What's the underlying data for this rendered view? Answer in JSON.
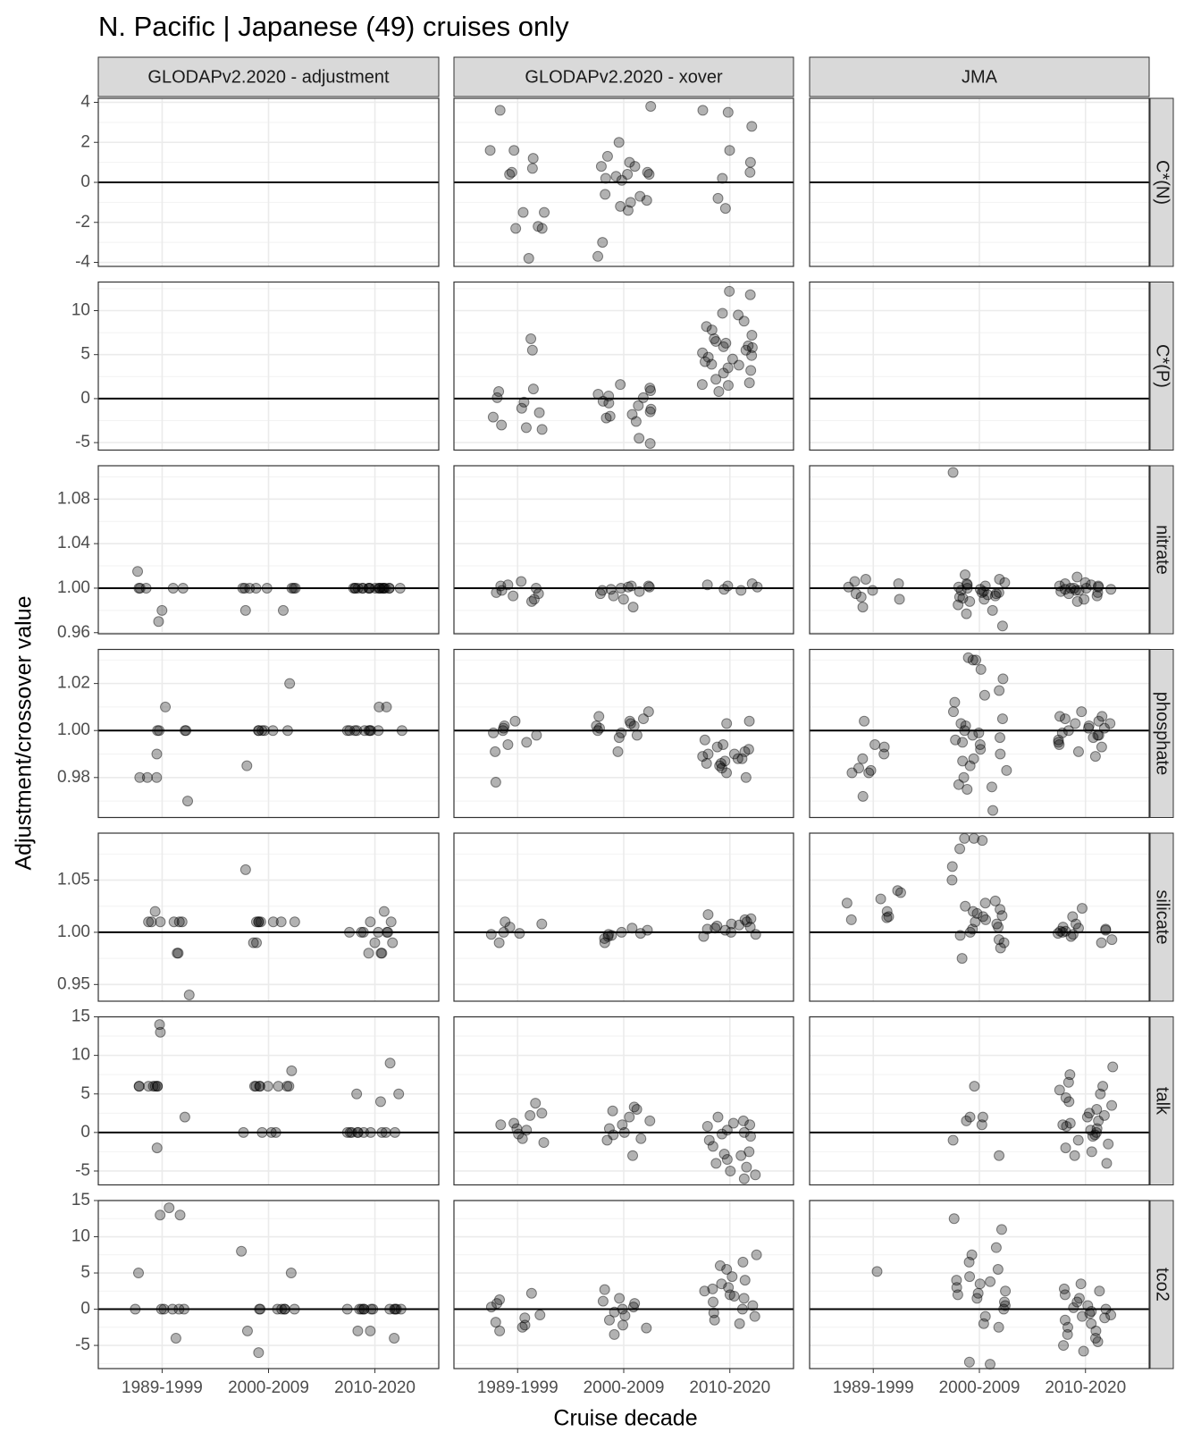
{
  "chart_data": {
    "type": "scatter",
    "title": "N. Pacific | Japanese (49) cruises only",
    "xlabel": "Cruise decade",
    "ylabel": "Adjustment/crossover value",
    "categories": [
      "1989-1999",
      "2000-2009",
      "2010-2020"
    ],
    "columns": [
      "GLODAPv2.2020 - adjustment",
      "GLODAPv2.2020 - xover",
      "JMA"
    ],
    "point_color": "#000000",
    "point_opacity": 0.3,
    "grid": true,
    "rows": [
      {
        "name": "C*(N)",
        "ylim": [
          -4.2,
          4.2
        ],
        "yticks": [
          -4,
          -2,
          0,
          2,
          4
        ],
        "hline": 0,
        "panels": [
          [
            [],
            [],
            []
          ],
          [
            [
              3.6,
              1.6,
              1.6,
              0.4,
              0.7,
              0.5,
              1.2,
              -1.5,
              -2.2,
              -2.3,
              -2.3,
              -1.5,
              -3.8
            ],
            [
              3.8,
              2.0,
              0.5,
              0.8,
              1.0,
              1.3,
              0.4,
              0.3,
              0.4,
              0.8,
              0.2,
              0.1,
              -0.6,
              -0.7,
              -0.9,
              -1.2,
              -1.4,
              -1.0,
              -3.0,
              -3.7
            ],
            [
              2.8,
              3.6,
              3.5,
              1.6,
              1.0,
              0.5,
              0.2,
              -0.8,
              -1.3
            ]
          ],
          [
            [],
            [],
            []
          ]
        ]
      },
      {
        "name": "C*(P)",
        "ylim": [
          -5.85,
          13.25
        ],
        "yticks": [
          -5,
          0,
          5,
          10
        ],
        "hline": 0,
        "panels": [
          [
            [],
            [],
            []
          ],
          [
            [
              6.8,
              5.5,
              1.1,
              0.8,
              0.1,
              -0.4,
              -1.1,
              -1.6,
              -2.1,
              -3.0,
              -3.3,
              -3.5
            ],
            [
              1.6,
              1.2,
              0.9,
              0.5,
              0.3,
              0.1,
              -0.3,
              -0.8,
              -1.2,
              -1.8,
              -2.0,
              -2.2,
              -2.6,
              -4.5,
              -5.1,
              -1.5,
              -0.5
            ],
            [
              12.2,
              11.8,
              9.7,
              9.5,
              8.8,
              8.2,
              7.8,
              7.2,
              6.8,
              6.3,
              6.0,
              5.8,
              5.5,
              5.2,
              4.9,
              4.5,
              4.2,
              3.8,
              3.5,
              3.2,
              2.9,
              2.2,
              1.8,
              1.6,
              1.5,
              0.8,
              6.5,
              5.9,
              4.7,
              3.9
            ]
          ],
          [
            [],
            [],
            []
          ]
        ]
      },
      {
        "name": "nitrate",
        "ylim": [
          0.959,
          1.11
        ],
        "yticks": [
          {
            "value": 0.96,
            "label": "0.96"
          },
          {
            "value": 1,
            "label": "1.00"
          },
          {
            "value": 1.04,
            "label": "1.04"
          },
          {
            "value": 1.08,
            "label": "1.08"
          }
        ],
        "hline": 1,
        "panels": [
          [
            [
              1.015,
              1,
              1,
              1,
              1,
              1,
              0.98,
              0.97
            ],
            [
              1,
              1,
              1,
              1,
              1,
              1,
              1,
              1,
              0.98,
              0.98
            ],
            [
              1,
              1,
              1,
              1,
              1,
              1,
              1,
              1,
              1,
              1,
              1,
              1,
              1,
              1,
              1,
              1,
              1,
              1,
              1,
              1
            ]
          ],
          [
            [
              1.006,
              1.003,
              1,
              0.998,
              0.996,
              0.995,
              0.993,
              0.99,
              0.988,
              1.002
            ],
            [
              1.002,
              1.001,
              1,
              0.999,
              0.998,
              0.997,
              0.995,
              0.993,
              0.99,
              0.983,
              1.002,
              1.001
            ],
            [
              1.004,
              1.003,
              1.001,
              0.999,
              0.998,
              1.002
            ]
          ],
          [
            [
              1.008,
              1.006,
              1.004,
              1.001,
              0.998,
              0.995,
              0.992,
              0.99,
              0.983
            ],
            [
              1.104,
              1.012,
              1.008,
              1.005,
              1.003,
              1,
              0.998,
              0.996,
              0.994,
              0.992,
              0.99,
              0.988,
              0.985,
              0.98,
              0.977,
              0.966,
              1.004,
              1.002,
              0.999,
              0.997,
              0.995,
              0.993,
              1.001,
              0.996,
              0.991
            ],
            [
              1.01,
              1.005,
              1.003,
              1.002,
              1.001,
              1,
              1,
              0.999,
              0.998,
              0.997,
              0.995,
              0.993,
              0.99,
              0.988,
              1.004,
              1.002,
              1,
              0.999,
              0.998,
              0.996
            ]
          ]
        ]
      },
      {
        "name": "phosphate",
        "ylim": [
          0.963,
          1.0345
        ],
        "yticks": [
          {
            "value": 0.98,
            "label": "0.98"
          },
          {
            "value": 1,
            "label": "1.00"
          },
          {
            "value": 1.02,
            "label": "1.02"
          }
        ],
        "hline": 1,
        "panels": [
          [
            [
              1.01,
              1,
              1,
              1,
              1,
              0.99,
              0.98,
              0.98,
              0.98,
              0.97
            ],
            [
              1.02,
              1,
              1,
              1,
              1,
              1,
              1,
              0.985
            ],
            [
              1.01,
              1.01,
              1,
              1,
              1,
              1,
              1,
              1,
              1,
              1,
              1,
              1
            ]
          ],
          [
            [
              1.004,
              1.002,
              1.001,
              1,
              0.999,
              0.998,
              0.995,
              0.994,
              0.991,
              0.978
            ],
            [
              1.008,
              1.006,
              1.005,
              1.004,
              1.003,
              1.002,
              1.001,
              1,
              0.999,
              0.998,
              0.997,
              0.991,
              1.002
            ],
            [
              1.004,
              1.003,
              0.996,
              0.994,
              0.992,
              0.991,
              0.99,
              0.989,
              0.988,
              0.987,
              0.986,
              0.985,
              0.984,
              0.982,
              0.98,
              0.993,
              0.99,
              0.988,
              0.986
            ]
          ],
          [
            [
              1.004,
              0.994,
              0.993,
              0.99,
              0.988,
              0.983,
              0.982,
              0.982,
              0.972,
              0.984
            ],
            [
              1.031,
              1.03,
              1.03,
              1.026,
              1.022,
              1.017,
              1.015,
              1.012,
              1.008,
              1.005,
              1.003,
              1,
              0.998,
              0.996,
              0.994,
              0.99,
              0.988,
              0.985,
              0.983,
              0.98,
              0.977,
              0.976,
              0.975,
              0.966,
              1.002,
              0.999,
              0.997,
              0.995,
              0.992,
              0.987
            ],
            [
              1.008,
              1.006,
              1.005,
              1.004,
              1.003,
              1.002,
              1.001,
              1,
              0.999,
              0.998,
              0.997,
              0.996,
              0.995,
              0.993,
              0.991,
              0.989,
              1.006,
              1.003,
              1.001,
              0.998,
              0.994
            ]
          ]
        ]
      },
      {
        "name": "silicate",
        "ylim": [
          0.934,
          1.095
        ],
        "yticks": [
          {
            "value": 0.95,
            "label": "0.95"
          },
          {
            "value": 1,
            "label": "1.00"
          },
          {
            "value": 1.05,
            "label": "1.05"
          }
        ],
        "hline": 1,
        "panels": [
          [
            [
              1.02,
              1.01,
              1.01,
              1.01,
              1.01,
              1.01,
              1.01,
              0.98,
              0.98,
              0.94
            ],
            [
              1.06,
              1.01,
              1.01,
              1.01,
              1.01,
              1.01,
              1.01,
              1.01,
              0.99,
              0.99
            ],
            [
              1.02,
              1.01,
              1.01,
              1,
              1,
              1,
              1,
              1,
              1,
              0.99,
              0.99,
              0.98,
              0.98,
              0.98
            ]
          ],
          [
            [
              1.01,
              1.008,
              1.005,
              1,
              0.999,
              0.998,
              0.99
            ],
            [
              1.004,
              1.002,
              1,
              0.999,
              0.998,
              0.997,
              0.996,
              0.994,
              0.99
            ],
            [
              1.017,
              1.013,
              1.01,
              1.008,
              1.006,
              1.005,
              1.004,
              1.003,
              1.002,
              1,
              0.998,
              0.996,
              1.012,
              1.007
            ]
          ],
          [
            [
              1.04,
              1.038,
              1.032,
              1.028,
              1.02,
              1.015,
              1.014,
              1.012
            ],
            [
              1.09,
              1.09,
              1.088,
              1.08,
              1.063,
              1.05,
              1.03,
              1.028,
              1.025,
              1.02,
              1.018,
              1.015,
              1.012,
              1.01,
              1.008,
              1.005,
              1,
              0.997,
              0.993,
              0.99,
              0.985,
              0.975,
              1.022,
              1.016,
              1.003
            ],
            [
              1.023,
              1.015,
              1.008,
              1.005,
              1.003,
              1.002,
              1.001,
              1,
              0.999,
              0.998,
              0.996,
              0.993,
              0.99,
              1.004,
              1.001
            ]
          ]
        ]
      },
      {
        "name": "talk",
        "ylim": [
          -6.8,
          15
        ],
        "yticks": [
          -5,
          0,
          5,
          10,
          15
        ],
        "hline": 0,
        "panels": [
          [
            [
              14,
              13,
              6,
              6,
              6,
              6,
              6,
              6,
              6,
              2,
              -2
            ],
            [
              8,
              6,
              6,
              6,
              6,
              6,
              6,
              6,
              6,
              0,
              0,
              0,
              0
            ],
            [
              9,
              5,
              5,
              4,
              0,
              0,
              0,
              0,
              0,
              0,
              0,
              0,
              0,
              0
            ]
          ],
          [
            [
              3.8,
              2.5,
              2.2,
              1.2,
              1.0,
              0.5,
              0.3,
              -0.2,
              -0.8,
              -1.3
            ],
            [
              3.3,
              3.0,
              2.8,
              2.0,
              1.5,
              1.0,
              0.5,
              0,
              -0.3,
              -0.8,
              -1.0,
              -3.0
            ],
            [
              2.0,
              1.5,
              1.2,
              0.8,
              0.3,
              0,
              -0.5,
              -1.0,
              -1.8,
              -2.5,
              -3.0,
              -3.5,
              -4.0,
              -4.5,
              -5.0,
              -5.5,
              -6.0,
              1.0,
              -2.8,
              -0.2
            ]
          ],
          [
            [],
            [
              6,
              2,
              2,
              1.5,
              1,
              -1,
              -3
            ],
            [
              8.5,
              7.5,
              6.5,
              6,
              5.5,
              5,
              4.5,
              4,
              3.5,
              3,
              2.5,
              2,
              1.5,
              1,
              0.5,
              0,
              -0.5,
              -1,
              -1.5,
              -2,
              -2.5,
              -3,
              -4,
              1.2,
              0.8,
              -0.3,
              2.2,
              0.3
            ]
          ]
        ]
      },
      {
        "name": "tco2",
        "ylim": [
          -8.2,
          15
        ],
        "yticks": [
          -5,
          0,
          5,
          10,
          15
        ],
        "hline": 0,
        "panels": [
          [
            [
              14,
              13,
              13,
              5,
              0,
              0,
              0,
              0,
              0,
              0,
              -4
            ],
            [
              8,
              5,
              0,
              0,
              0,
              0,
              0,
              0,
              0,
              -3,
              -6
            ],
            [
              0,
              0,
              0,
              0,
              0,
              0,
              0,
              0,
              0,
              0,
              0,
              0,
              -3,
              -3,
              -4
            ]
          ],
          [
            [
              2.2,
              1.3,
              0.8,
              0.3,
              -0.8,
              -1.2,
              -1.8,
              -2.2,
              -2.5,
              -3.0
            ],
            [
              2.7,
              1.5,
              1.1,
              0.8,
              0.3,
              0,
              -0.4,
              -0.9,
              -1.5,
              -2.2,
              -3.5,
              -2.6
            ],
            [
              7.5,
              6.5,
              6.0,
              5.5,
              4.5,
              4.0,
              3.5,
              3.0,
              2.5,
              2.0,
              1.5,
              1.0,
              0.5,
              0,
              -0.5,
              -1.0,
              -1.5,
              -2.0,
              2.8,
              1.8
            ]
          ],
          [
            [
              5.2
            ],
            [
              12.5,
              11,
              8.5,
              7.5,
              6.5,
              5.5,
              4.5,
              4,
              3.5,
              3,
              2.5,
              2,
              1.5,
              1,
              0.5,
              0,
              -1,
              -2,
              -2.5,
              -7.3,
              -7.6,
              3.8,
              2.2
            ],
            [
              3.5,
              2.8,
              2.5,
              2,
              1.5,
              1,
              0.5,
              0,
              -0.3,
              -0.6,
              -1,
              -1.5,
              -2,
              -2.5,
              -3,
              -3.5,
              -4,
              -4.5,
              -5,
              -5.8,
              0.2,
              -0.8,
              -1.2
            ]
          ]
        ]
      }
    ]
  }
}
